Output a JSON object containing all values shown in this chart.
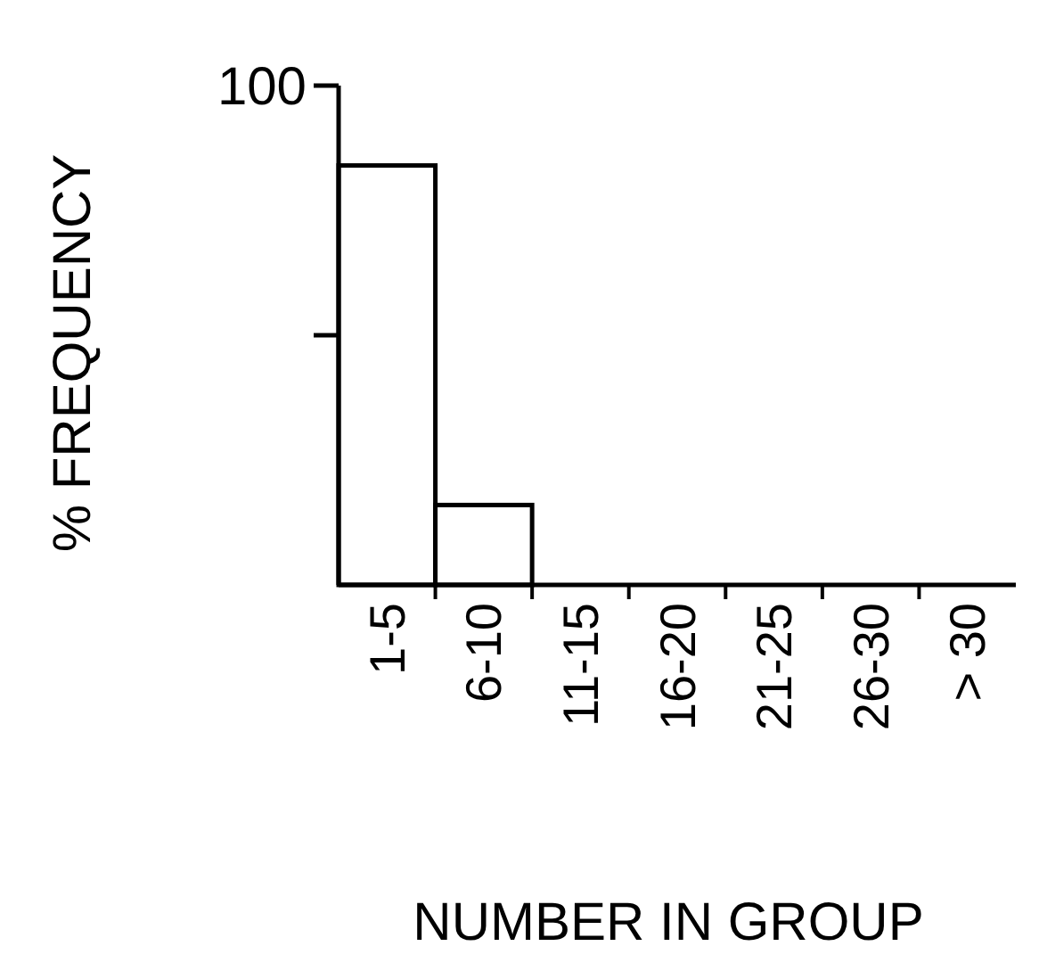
{
  "chart_data": {
    "type": "bar",
    "xlabel": "NUMBER IN GROUP",
    "ylabel": "% FREQUENCY",
    "categories": [
      "1-5",
      "6-10",
      "11-15",
      "16-20",
      "21-25",
      "26-30",
      "> 30"
    ],
    "values": [
      84,
      16,
      0,
      0,
      0,
      0,
      0
    ],
    "color": "#ffffff",
    "ylim": [
      0,
      100
    ],
    "yticks": [
      {
        "value": 50,
        "label": null
      },
      100
    ],
    "grid": false
  }
}
